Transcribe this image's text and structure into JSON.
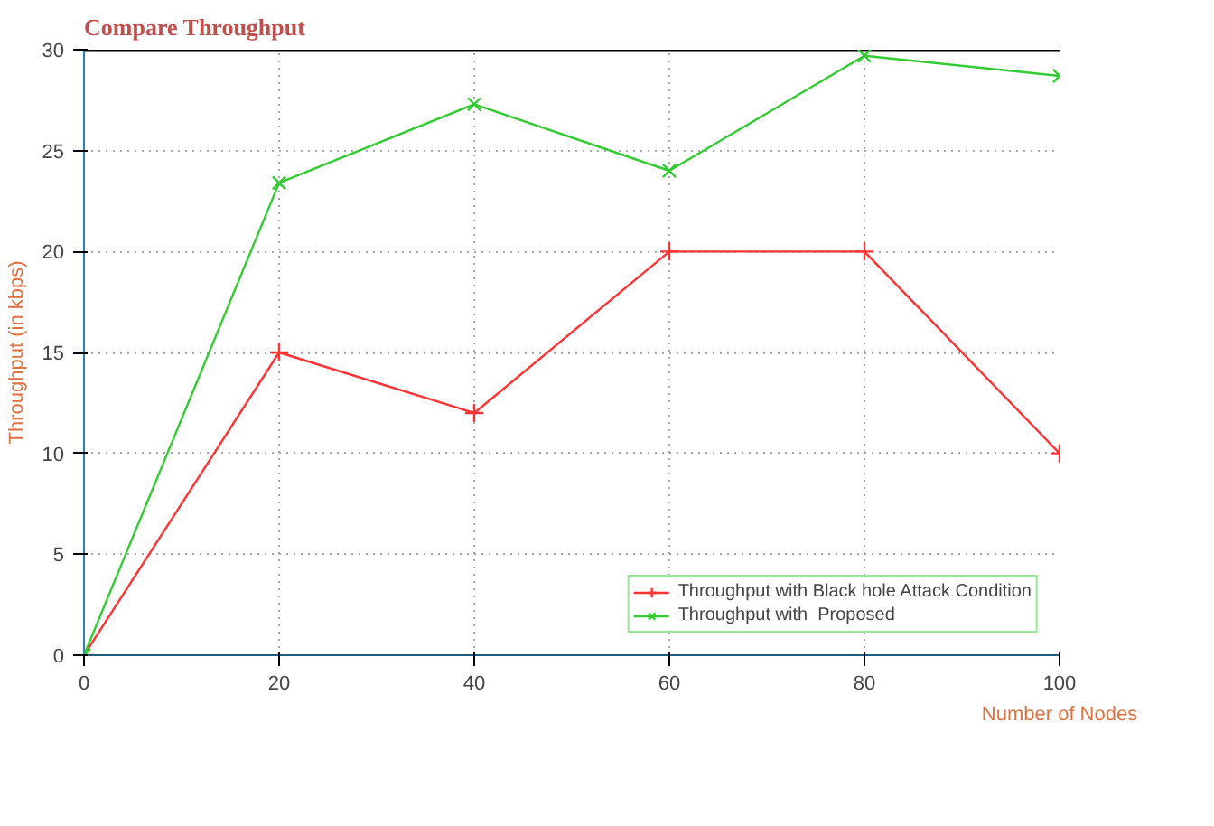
{
  "chart_data": {
    "type": "line",
    "title": "Compare Throughput",
    "xlabel": "Number of Nodes",
    "ylabel": "Throughput (in kbps)",
    "x": [
      0,
      20,
      40,
      60,
      80,
      100
    ],
    "series": [
      {
        "name": "Throughput with Black hole Attack Condition",
        "color": "#ff3333",
        "marker": "cross",
        "values": [
          0,
          15,
          12,
          20,
          20,
          10
        ]
      },
      {
        "name": "Throughput with  Proposed",
        "color": "#33cc33",
        "marker": "x",
        "values": [
          0,
          23.4,
          27.3,
          24,
          29.7,
          28.7
        ]
      }
    ],
    "xlim": [
      0,
      100
    ],
    "ylim": [
      0,
      30
    ],
    "xticks": [
      0,
      20,
      40,
      60,
      80,
      100
    ],
    "yticks": [
      0,
      5,
      10,
      15,
      20,
      25,
      30
    ],
    "grid": true,
    "legend": "bottom right",
    "line_style": "solid"
  }
}
